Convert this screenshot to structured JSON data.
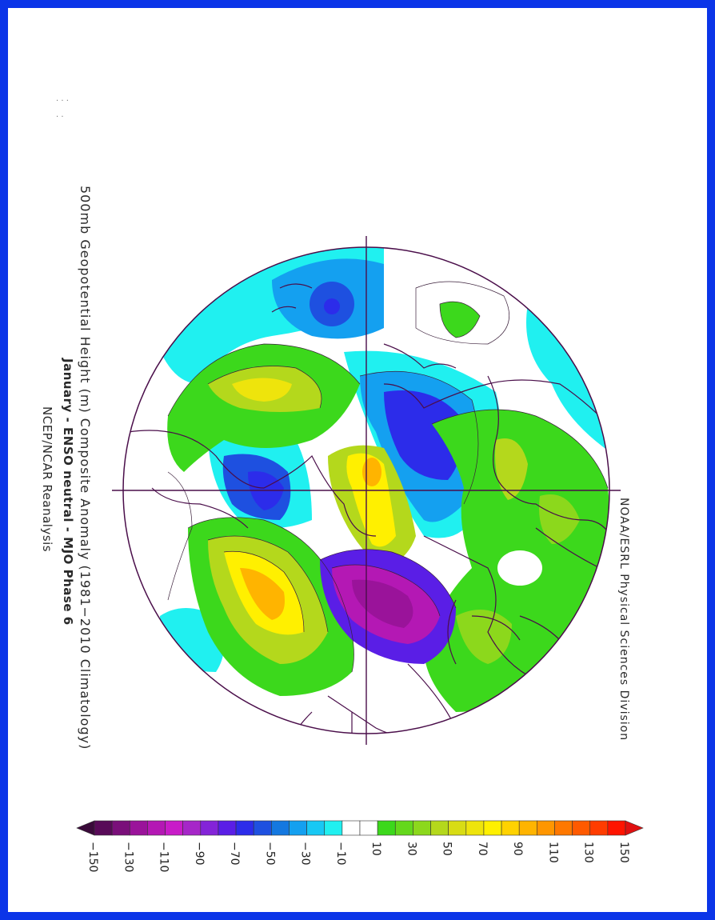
{
  "title": {
    "line1": "500mb  Geopotential  Height  (m)  Composite  Anomaly  (1981−2010  Climatology)",
    "line2": "January - ENSO neutral - MJO Phase 6",
    "line3": "NCEP/NCAR Reanalysis"
  },
  "credit": "NOAA/ESRL  Physical  Sciences  Division",
  "corner_marks": ". . .\n. .",
  "colorbar": {
    "tick_labels": [
      "−150",
      "−130",
      "−110",
      "−90",
      "−70",
      "−50",
      "−30",
      "−10",
      "10",
      "30",
      "50",
      "70",
      "90",
      "110",
      "130",
      "150"
    ],
    "colors": [
      "#580a58",
      "#7a0f7a",
      "#9a139a",
      "#b418b4",
      "#c81cc8",
      "#a626c8",
      "#8424d8",
      "#5a1ee6",
      "#2c2cea",
      "#1e50e0",
      "#1478e0",
      "#14a0f0",
      "#18c8f4",
      "#20f0f0",
      "#ffffff",
      "#ffffff",
      "#3cd81c",
      "#64d81c",
      "#8cd81c",
      "#b4d81c",
      "#d8dc14",
      "#eee40c",
      "#fff000",
      "#ffd200",
      "#ffb400",
      "#ff9600",
      "#ff7800",
      "#ff5a00",
      "#ff3c00",
      "#ff1400"
    ]
  },
  "map": {
    "projection": "polar stereographic, North Pole centered",
    "field": "500mb geopotential height anomaly (m)"
  }
}
